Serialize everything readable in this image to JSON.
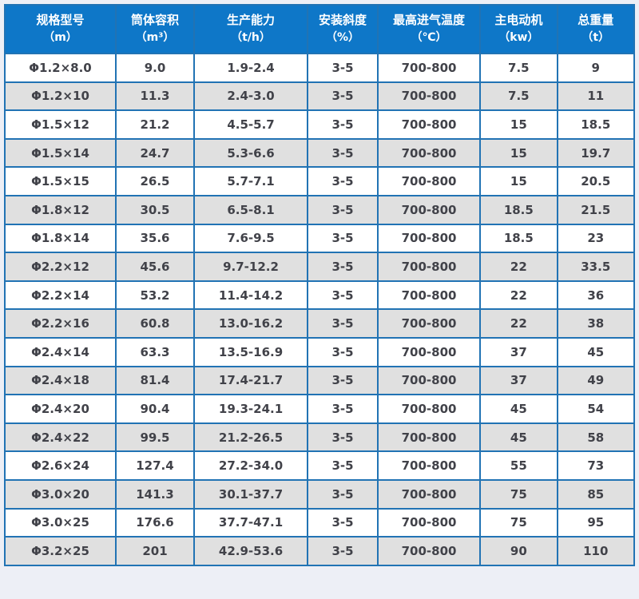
{
  "page": {
    "background_color": "#edeff6"
  },
  "table": {
    "header_bg_color": "#0e77c8",
    "header_text_color": "#ffffff",
    "border_color": "#2173b4",
    "stripe_color": "#e0e0e0",
    "body_text_color": "#414249",
    "columns": [
      {
        "label": "规格型号",
        "unit": "（m）"
      },
      {
        "label": "筒体容积",
        "unit": "（m³）"
      },
      {
        "label": "生产能力",
        "unit": "（t/h）"
      },
      {
        "label": "安装斜度",
        "unit": "（%）"
      },
      {
        "label": "最高进气温度",
        "unit": "（℃）"
      },
      {
        "label": "主电动机",
        "unit": "（kw）"
      },
      {
        "label": "总重量",
        "unit": "（t）"
      }
    ],
    "rows": [
      [
        "Φ1.2×8.0",
        "9.0",
        "1.9-2.4",
        "3-5",
        "700-800",
        "7.5",
        "9"
      ],
      [
        "Φ1.2×10",
        "11.3",
        "2.4-3.0",
        "3-5",
        "700-800",
        "7.5",
        "11"
      ],
      [
        "Φ1.5×12",
        "21.2",
        "4.5-5.7",
        "3-5",
        "700-800",
        "15",
        "18.5"
      ],
      [
        "Φ1.5×14",
        "24.7",
        "5.3-6.6",
        "3-5",
        "700-800",
        "15",
        "19.7"
      ],
      [
        "Φ1.5×15",
        "26.5",
        "5.7-7.1",
        "3-5",
        "700-800",
        "15",
        "20.5"
      ],
      [
        "Φ1.8×12",
        "30.5",
        "6.5-8.1",
        "3-5",
        "700-800",
        "18.5",
        "21.5"
      ],
      [
        "Φ1.8×14",
        "35.6",
        "7.6-9.5",
        "3-5",
        "700-800",
        "18.5",
        "23"
      ],
      [
        "Φ2.2×12",
        "45.6",
        "9.7-12.2",
        "3-5",
        "700-800",
        "22",
        "33.5"
      ],
      [
        "Φ2.2×14",
        "53.2",
        "11.4-14.2",
        "3-5",
        "700-800",
        "22",
        "36"
      ],
      [
        "Φ2.2×16",
        "60.8",
        "13.0-16.2",
        "3-5",
        "700-800",
        "22",
        "38"
      ],
      [
        "Φ2.4×14",
        "63.3",
        "13.5-16.9",
        "3-5",
        "700-800",
        "37",
        "45"
      ],
      [
        "Φ2.4×18",
        "81.4",
        "17.4-21.7",
        "3-5",
        "700-800",
        "37",
        "49"
      ],
      [
        "Φ2.4×20",
        "90.4",
        "19.3-24.1",
        "3-5",
        "700-800",
        "45",
        "54"
      ],
      [
        "Φ2.4×22",
        "99.5",
        "21.2-26.5",
        "3-5",
        "700-800",
        "45",
        "58"
      ],
      [
        "Φ2.6×24",
        "127.4",
        "27.2-34.0",
        "3-5",
        "700-800",
        "55",
        "73"
      ],
      [
        "Φ3.0×20",
        "141.3",
        "30.1-37.7",
        "3-5",
        "700-800",
        "75",
        "85"
      ],
      [
        "Φ3.0×25",
        "176.6",
        "37.7-47.1",
        "3-5",
        "700-800",
        "75",
        "95"
      ],
      [
        "Φ3.2×25",
        "201",
        "42.9-53.6",
        "3-5",
        "700-800",
        "90",
        "110"
      ]
    ]
  },
  "chart_data": {
    "type": "table",
    "title": "",
    "columns": [
      "规格型号（m）",
      "筒体容积（m³）",
      "生产能力（t/h）",
      "安装斜度（%）",
      "最高进气温度（℃）",
      "主电动机（kw）",
      "总重量（t）"
    ],
    "rows": [
      [
        "Φ1.2×8.0",
        "9.0",
        "1.9-2.4",
        "3-5",
        "700-800",
        "7.5",
        "9"
      ],
      [
        "Φ1.2×10",
        "11.3",
        "2.4-3.0",
        "3-5",
        "700-800",
        "7.5",
        "11"
      ],
      [
        "Φ1.5×12",
        "21.2",
        "4.5-5.7",
        "3-5",
        "700-800",
        "15",
        "18.5"
      ],
      [
        "Φ1.5×14",
        "24.7",
        "5.3-6.6",
        "3-5",
        "700-800",
        "15",
        "19.7"
      ],
      [
        "Φ1.5×15",
        "26.5",
        "5.7-7.1",
        "3-5",
        "700-800",
        "15",
        "20.5"
      ],
      [
        "Φ1.8×12",
        "30.5",
        "6.5-8.1",
        "3-5",
        "700-800",
        "18.5",
        "21.5"
      ],
      [
        "Φ1.8×14",
        "35.6",
        "7.6-9.5",
        "3-5",
        "700-800",
        "18.5",
        "23"
      ],
      [
        "Φ2.2×12",
        "45.6",
        "9.7-12.2",
        "3-5",
        "700-800",
        "22",
        "33.5"
      ],
      [
        "Φ2.2×14",
        "53.2",
        "11.4-14.2",
        "3-5",
        "700-800",
        "22",
        "36"
      ],
      [
        "Φ2.2×16",
        "60.8",
        "13.0-16.2",
        "3-5",
        "700-800",
        "22",
        "38"
      ],
      [
        "Φ2.4×14",
        "63.3",
        "13.5-16.9",
        "3-5",
        "700-800",
        "37",
        "45"
      ],
      [
        "Φ2.4×18",
        "81.4",
        "17.4-21.7",
        "3-5",
        "700-800",
        "37",
        "49"
      ],
      [
        "Φ2.4×20",
        "90.4",
        "19.3-24.1",
        "3-5",
        "700-800",
        "45",
        "54"
      ],
      [
        "Φ2.4×22",
        "99.5",
        "21.2-26.5",
        "3-5",
        "700-800",
        "45",
        "58"
      ],
      [
        "Φ2.6×24",
        "127.4",
        "27.2-34.0",
        "3-5",
        "700-800",
        "55",
        "73"
      ],
      [
        "Φ3.0×20",
        "141.3",
        "30.1-37.7",
        "3-5",
        "700-800",
        "75",
        "85"
      ],
      [
        "Φ3.0×25",
        "176.6",
        "37.7-47.1",
        "3-5",
        "700-800",
        "75",
        "95"
      ],
      [
        "Φ3.2×25",
        "201",
        "42.9-53.6",
        "3-5",
        "700-800",
        "90",
        "110"
      ]
    ]
  }
}
